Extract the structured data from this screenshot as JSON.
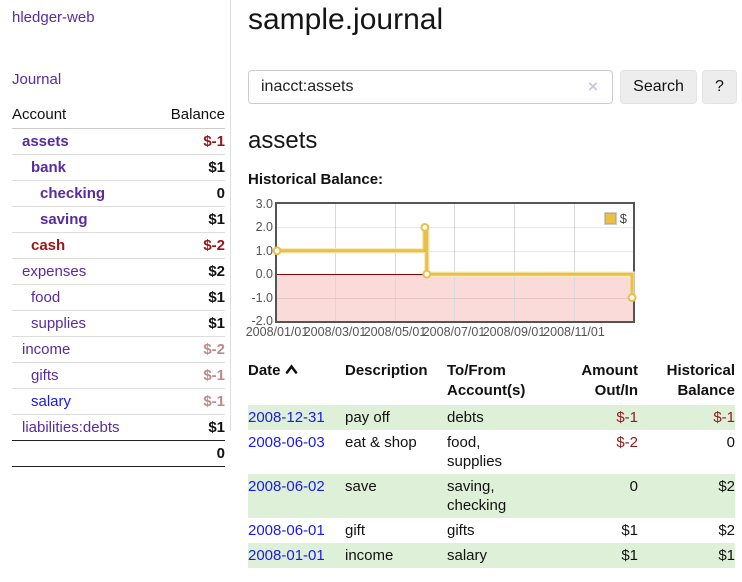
{
  "app": {
    "brand": "hledger-web"
  },
  "palette": {
    "purple": "#582ba2",
    "link_blue": "#1a1aee",
    "neg_strong": "#9e1414",
    "neg_muted": "#c28989",
    "black": "#111111",
    "stripe_green": "#dff0d8"
  },
  "sidebar": {
    "nav_journal": "Journal",
    "col_account": "Account",
    "col_balance": "Balance",
    "accounts": [
      {
        "name": "assets",
        "balance": "$-1",
        "name_color": "#582ba2",
        "balance_color": "#9e1414"
      },
      {
        "name": "bank",
        "balance": "$1",
        "name_color": "#582ba2",
        "balance_color": "#111111"
      },
      {
        "name": "checking",
        "balance": "0",
        "name_color": "#582ba2",
        "balance_color": "#111111"
      },
      {
        "name": "saving",
        "balance": "$1",
        "name_color": "#582ba2",
        "balance_color": "#111111"
      },
      {
        "name": "cash",
        "balance": "$-2",
        "name_color": "#9e1414",
        "balance_color": "#9e1414"
      },
      {
        "name": "expenses",
        "balance": "$2",
        "name_color": "#582ba2",
        "balance_color": "#111111"
      },
      {
        "name": "food",
        "balance": "$1",
        "name_color": "#582ba2",
        "balance_color": "#111111"
      },
      {
        "name": "supplies",
        "balance": "$1",
        "name_color": "#582ba2",
        "balance_color": "#111111"
      },
      {
        "name": "income",
        "balance": "$-2",
        "name_color": "#582ba2",
        "balance_color": "#c28989"
      },
      {
        "name": "gifts",
        "balance": "$-1",
        "name_color": "#582ba2",
        "balance_color": "#c28989"
      },
      {
        "name": "salary",
        "balance": "$-1",
        "name_color": "#1a1aee",
        "balance_color": "#c28989"
      },
      {
        "name": "liabilities:debts",
        "balance": "$1",
        "name_color": "#582ba2",
        "balance_color": "#111111"
      }
    ],
    "total": "0"
  },
  "main": {
    "title": "sample.journal",
    "search": {
      "value": "inacct:assets",
      "clear_icon": "×",
      "button": "Search",
      "help_button": "?"
    },
    "account_heading": "assets",
    "chart_label": "Historical Balance:"
  },
  "chart_data": {
    "type": "line",
    "title": "Historical Balance:",
    "series": [
      {
        "name": "$",
        "color": "#e9c044",
        "halo_color": "#f6e8c0",
        "step": true,
        "points": [
          [
            "2008/01/01",
            1
          ],
          [
            "2008/06/01",
            2
          ],
          [
            "2008/06/03",
            0
          ],
          [
            "2008/12/31",
            -1
          ]
        ]
      }
    ],
    "x_ticks": [
      "2008/01/01",
      "2008/03/01",
      "2008/05/01",
      "2008/07/01",
      "2008/09/01",
      "2008/11/01"
    ],
    "y_ticks": [
      3.0,
      2.0,
      1.0,
      0.0,
      -1.0,
      -2.0
    ],
    "ylim": [
      -2,
      3
    ],
    "x_start": "2008/01/01",
    "x_span_days": 366,
    "grid": true,
    "legend_position": "top-right",
    "negative_band_color": "#fbdada",
    "zero_line_color": "#8b0000"
  },
  "register": {
    "headers": {
      "date": "Date",
      "description": "Description",
      "tofrom": "To/From Account(s)",
      "amount": "Amount Out/In",
      "balance": "Historical Balance"
    },
    "rows": [
      {
        "date": "2008-12-31",
        "description": "pay off",
        "accounts": "debts",
        "amount": "$-1",
        "balance": "$-1",
        "amount_color": "#8f1a1a",
        "balance_color": "#8f1a1a"
      },
      {
        "date": "2008-06-03",
        "description": "eat & shop",
        "accounts": "food, supplies",
        "amount": "$-2",
        "balance": "0",
        "amount_color": "#8f1a1a",
        "balance_color": "#111111"
      },
      {
        "date": "2008-06-02",
        "description": "save",
        "accounts": "saving, checking",
        "amount": "0",
        "balance": "$2",
        "amount_color": "#111111",
        "balance_color": "#111111"
      },
      {
        "date": "2008-06-01",
        "description": "gift",
        "accounts": "gifts",
        "amount": "$1",
        "balance": "$2",
        "amount_color": "#111111",
        "balance_color": "#111111"
      },
      {
        "date": "2008-01-01",
        "description": "income",
        "accounts": "salary",
        "amount": "$1",
        "balance": "$1",
        "amount_color": "#111111",
        "balance_color": "#111111"
      }
    ]
  }
}
